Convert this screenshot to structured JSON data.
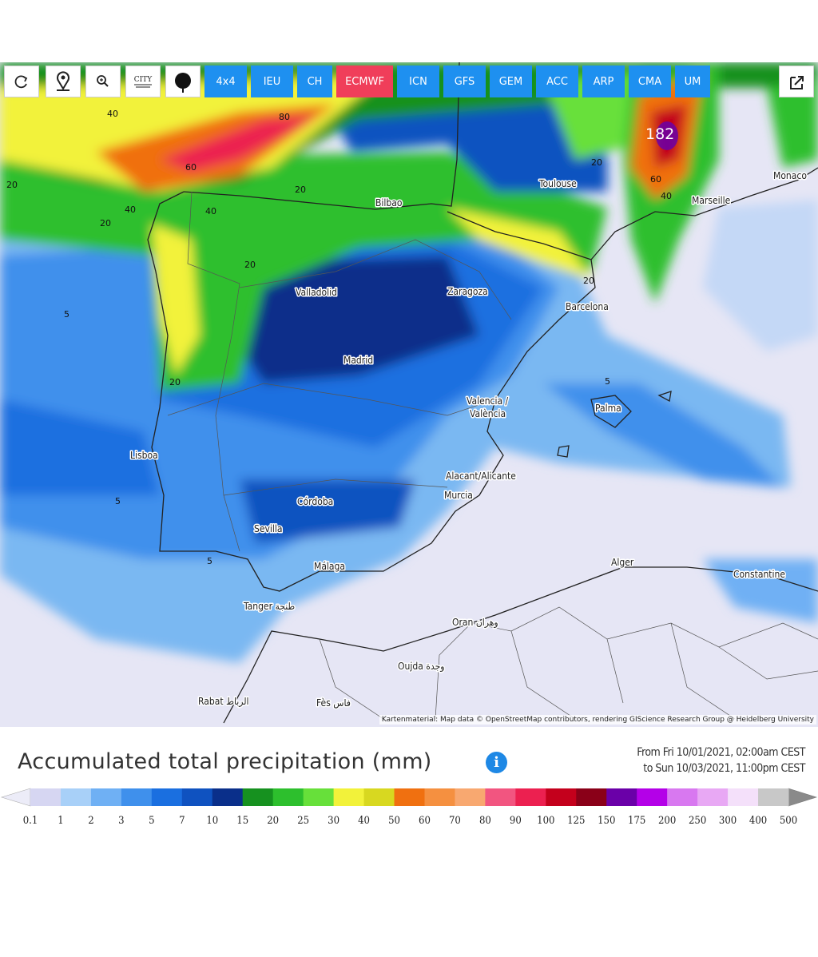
{
  "toolbar": {
    "city_icon": "CITY",
    "models": [
      {
        "label": "4x4",
        "color": "#1e90f0"
      },
      {
        "label": "IEU",
        "color": "#1e90f0"
      },
      {
        "label": "CH",
        "color": "#1e90f0"
      },
      {
        "label": "ECMWF",
        "color": "#f03e5a"
      },
      {
        "label": "ICN",
        "color": "#1e90f0"
      },
      {
        "label": "GFS",
        "color": "#1e90f0"
      },
      {
        "label": "GEM",
        "color": "#1e90f0"
      },
      {
        "label": "ACC",
        "color": "#1e90f0"
      },
      {
        "label": "ARP",
        "color": "#1e90f0"
      },
      {
        "label": "CMA",
        "color": "#1e90f0"
      },
      {
        "label": "UM",
        "color": "#1e90f0"
      }
    ]
  },
  "map": {
    "cities": [
      "Bilbao",
      "Toulouse",
      "Marseille",
      "Monaco",
      "Valladolid",
      "Zaragoza",
      "Barcelona",
      "Madrid",
      "Valencia /",
      "València",
      "Palma",
      "Lisboa",
      "Alacant/Alicante",
      "Murcia",
      "Córdoba",
      "Sevilla",
      "Málaga",
      "Alger",
      "Constantine",
      "Tanger طنجة",
      "Oran وهران",
      "Oujda وجدة",
      "Rabat الرباط",
      "Fès فاس"
    ],
    "contour_labels": [
      40,
      80,
      60,
      20,
      40,
      40,
      20,
      20,
      20,
      5,
      20,
      5,
      5,
      182,
      60,
      40,
      20,
      20,
      5
    ],
    "attribution": "Kartenmaterial: Map data © OpenStreetMap contributors, rendering GIScience Research Group @ Heidelberg University"
  },
  "legend": {
    "title": "Accumulated total precipitation (mm)",
    "period_from": "From Fri 10/01/2021, 02:00am CEST",
    "period_to": "to Sun 10/03/2021, 11:00pm CEST",
    "below_color": "#ececf8",
    "above_color": "#8a8a8a",
    "ticks": [
      0.1,
      1,
      2,
      3,
      5,
      7,
      10,
      15,
      20,
      25,
      30,
      40,
      50,
      60,
      70,
      80,
      90,
      100,
      125,
      150,
      175,
      200,
      250,
      300,
      400,
      500
    ],
    "colors": [
      "#d6d6f2",
      "#a8d0f8",
      "#6fb0f4",
      "#3f90ec",
      "#1a6fe0",
      "#0f52c0",
      "#0a2f8a",
      "#16911f",
      "#2dbf2d",
      "#67e03a",
      "#f2f23a",
      "#d8d820",
      "#f07010",
      "#f59040",
      "#f8a870",
      "#f25580",
      "#ec2050",
      "#c4001c",
      "#8a0018",
      "#6a00a8",
      "#b400e8",
      "#d878f0",
      "#e8a8f4",
      "#f4e0fa",
      "#c8c8c8"
    ]
  }
}
